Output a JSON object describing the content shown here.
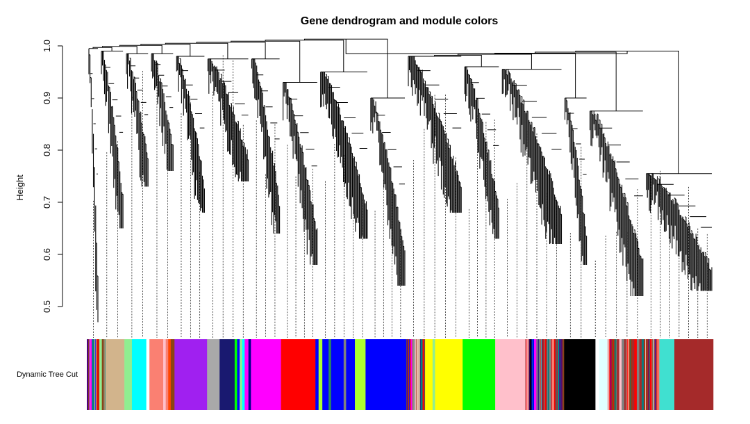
{
  "chart_data": {
    "type": "dendrogram",
    "title": "Gene dendrogram and module colors",
    "xlabel": "",
    "ylabel": "Height",
    "ylim": [
      0.44,
      1.0
    ],
    "yticks": [
      {
        "value": 0.5,
        "label": "0.5"
      },
      {
        "value": 0.6,
        "label": "0.6"
      },
      {
        "value": 0.7,
        "label": "0.7"
      },
      {
        "value": 0.8,
        "label": "0.8"
      },
      {
        "value": 0.9,
        "label": "0.9"
      },
      {
        "value": 1.0,
        "label": "1.0"
      }
    ],
    "color_row_label": "Dynamic Tree Cut",
    "root_height": 0.985,
    "clusters": [
      {
        "start": 0.0,
        "end": 0.02,
        "merge": 0.995,
        "low": 0.47,
        "color": "#6a0dad"
      },
      {
        "start": 0.02,
        "end": 0.06,
        "merge": 0.99,
        "low": 0.65,
        "color": "#d2b48c"
      },
      {
        "start": 0.06,
        "end": 0.1,
        "merge": 0.985,
        "low": 0.73,
        "color": "#00ffff"
      },
      {
        "start": 0.1,
        "end": 0.14,
        "merge": 0.985,
        "low": 0.76,
        "color": "#fa8072"
      },
      {
        "start": 0.14,
        "end": 0.19,
        "merge": 0.98,
        "low": 0.68,
        "color": "#a020f0"
      },
      {
        "start": 0.19,
        "end": 0.26,
        "merge": 0.975,
        "low": 0.74,
        "color": "#191970"
      },
      {
        "start": 0.26,
        "end": 0.31,
        "merge": 0.975,
        "low": 0.64,
        "color": "#ff00ff"
      },
      {
        "start": 0.31,
        "end": 0.37,
        "merge": 0.93,
        "low": 0.58,
        "color": "#ff0000"
      },
      {
        "start": 0.37,
        "end": 0.45,
        "merge": 0.95,
        "low": 0.63,
        "color": "#0000ff"
      },
      {
        "start": 0.45,
        "end": 0.51,
        "merge": 0.9,
        "low": 0.54,
        "color": "#0000ff"
      },
      {
        "start": 0.51,
        "end": 0.6,
        "merge": 0.98,
        "low": 0.68,
        "color": "#ffff00"
      },
      {
        "start": 0.6,
        "end": 0.66,
        "merge": 0.96,
        "low": 0.63,
        "color": "#00ff00"
      },
      {
        "start": 0.66,
        "end": 0.76,
        "merge": 0.955,
        "low": 0.62,
        "color": "#ffc0cb"
      },
      {
        "start": 0.76,
        "end": 0.8,
        "merge": 0.9,
        "low": 0.58,
        "color": "#000000"
      },
      {
        "start": 0.8,
        "end": 0.89,
        "merge": 0.875,
        "low": 0.52,
        "color": "#40e0d0"
      },
      {
        "start": 0.89,
        "end": 1.0,
        "merge": 0.755,
        "low": 0.53,
        "color": "#a52a2a"
      }
    ],
    "module_colors": [
      {
        "start": 0.0,
        "end": 0.004,
        "color": "#4b0082"
      },
      {
        "start": 0.004,
        "end": 0.008,
        "color": "#ff00ff"
      },
      {
        "start": 0.008,
        "end": 0.012,
        "color": "#008080"
      },
      {
        "start": 0.012,
        "end": 0.016,
        "color": "#d2b48c"
      },
      {
        "start": 0.016,
        "end": 0.02,
        "color": "#ff0000"
      },
      {
        "start": 0.02,
        "end": 0.024,
        "color": "#90ee90"
      },
      {
        "start": 0.024,
        "end": 0.028,
        "color": "#8b4513"
      },
      {
        "start": 0.028,
        "end": 0.06,
        "color": "#d2b48c"
      },
      {
        "start": 0.06,
        "end": 0.072,
        "color": "#90ee90"
      },
      {
        "start": 0.072,
        "end": 0.095,
        "color": "#00ffff"
      },
      {
        "start": 0.095,
        "end": 0.1,
        "color": "#ffffff"
      },
      {
        "start": 0.1,
        "end": 0.122,
        "color": "#fa8072"
      },
      {
        "start": 0.122,
        "end": 0.126,
        "color": "#ffc0cb"
      },
      {
        "start": 0.126,
        "end": 0.13,
        "color": "#fa8072"
      },
      {
        "start": 0.13,
        "end": 0.134,
        "color": "#ff4500"
      },
      {
        "start": 0.134,
        "end": 0.14,
        "color": "#8b4513"
      },
      {
        "start": 0.14,
        "end": 0.192,
        "color": "#a020f0"
      },
      {
        "start": 0.192,
        "end": 0.212,
        "color": "#a9a9a9"
      },
      {
        "start": 0.212,
        "end": 0.236,
        "color": "#191970"
      },
      {
        "start": 0.236,
        "end": 0.24,
        "color": "#00ff00"
      },
      {
        "start": 0.24,
        "end": 0.244,
        "color": "#0000ff"
      },
      {
        "start": 0.244,
        "end": 0.248,
        "color": "#90ee90"
      },
      {
        "start": 0.248,
        "end": 0.252,
        "color": "#00ffff"
      },
      {
        "start": 0.252,
        "end": 0.258,
        "color": "#ff00ff"
      },
      {
        "start": 0.258,
        "end": 0.262,
        "color": "#00008b"
      },
      {
        "start": 0.262,
        "end": 0.31,
        "color": "#ff00ff"
      },
      {
        "start": 0.31,
        "end": 0.365,
        "color": "#ff0000"
      },
      {
        "start": 0.365,
        "end": 0.37,
        "color": "#0000ff"
      },
      {
        "start": 0.37,
        "end": 0.376,
        "color": "#adff2f"
      },
      {
        "start": 0.376,
        "end": 0.386,
        "color": "#0000ff"
      },
      {
        "start": 0.386,
        "end": 0.39,
        "color": "#2e8b57"
      },
      {
        "start": 0.39,
        "end": 0.41,
        "color": "#0000ff"
      },
      {
        "start": 0.41,
        "end": 0.414,
        "color": "#808080"
      },
      {
        "start": 0.414,
        "end": 0.428,
        "color": "#0000ff"
      },
      {
        "start": 0.428,
        "end": 0.445,
        "color": "#adff2f"
      },
      {
        "start": 0.445,
        "end": 0.512,
        "color": "#0000ff"
      },
      {
        "start": 0.512,
        "end": 0.516,
        "color": "#8b4513"
      },
      {
        "start": 0.516,
        "end": 0.52,
        "color": "#ff00ff"
      },
      {
        "start": 0.52,
        "end": 0.524,
        "color": "#a9a9a9"
      },
      {
        "start": 0.524,
        "end": 0.528,
        "color": "#ffc0cb"
      },
      {
        "start": 0.528,
        "end": 0.532,
        "color": "#d2b48c"
      },
      {
        "start": 0.532,
        "end": 0.536,
        "color": "#008080"
      },
      {
        "start": 0.536,
        "end": 0.54,
        "color": "#ff0000"
      },
      {
        "start": 0.54,
        "end": 0.552,
        "color": "#ffff00"
      },
      {
        "start": 0.552,
        "end": 0.556,
        "color": "#90ee90"
      },
      {
        "start": 0.556,
        "end": 0.6,
        "color": "#ffff00"
      },
      {
        "start": 0.6,
        "end": 0.652,
        "color": "#00ff00"
      },
      {
        "start": 0.652,
        "end": 0.706,
        "color": "#ffc0cb"
      },
      {
        "start": 0.706,
        "end": 0.71,
        "color": "#000000"
      },
      {
        "start": 0.71,
        "end": 0.714,
        "color": "#0000ff"
      },
      {
        "start": 0.714,
        "end": 0.718,
        "color": "#ff00ff"
      },
      {
        "start": 0.718,
        "end": 0.722,
        "color": "#191970"
      },
      {
        "start": 0.722,
        "end": 0.726,
        "color": "#40e0d0"
      },
      {
        "start": 0.726,
        "end": 0.73,
        "color": "#a52a2a"
      },
      {
        "start": 0.73,
        "end": 0.734,
        "color": "#ff0000"
      },
      {
        "start": 0.734,
        "end": 0.738,
        "color": "#008080"
      },
      {
        "start": 0.738,
        "end": 0.742,
        "color": "#808080"
      },
      {
        "start": 0.742,
        "end": 0.746,
        "color": "#fa8072"
      },
      {
        "start": 0.746,
        "end": 0.75,
        "color": "#a52a2a"
      },
      {
        "start": 0.75,
        "end": 0.754,
        "color": "#008b8b"
      },
      {
        "start": 0.754,
        "end": 0.758,
        "color": "#4b0082"
      },
      {
        "start": 0.758,
        "end": 0.762,
        "color": "#8b4513"
      },
      {
        "start": 0.762,
        "end": 0.812,
        "color": "#000000"
      },
      {
        "start": 0.812,
        "end": 0.818,
        "color": "#ffffff"
      },
      {
        "start": 0.818,
        "end": 0.834,
        "color": "#e0ffff"
      },
      {
        "start": 0.834,
        "end": 0.838,
        "color": "#ff0000"
      },
      {
        "start": 0.838,
        "end": 0.842,
        "color": "#8b4513"
      },
      {
        "start": 0.842,
        "end": 0.846,
        "color": "#008080"
      },
      {
        "start": 0.846,
        "end": 0.85,
        "color": "#a52a2a"
      },
      {
        "start": 0.85,
        "end": 0.854,
        "color": "#ffc0cb"
      },
      {
        "start": 0.854,
        "end": 0.858,
        "color": "#808080"
      },
      {
        "start": 0.858,
        "end": 0.862,
        "color": "#a52a2a"
      },
      {
        "start": 0.862,
        "end": 0.866,
        "color": "#fa8072"
      },
      {
        "start": 0.866,
        "end": 0.87,
        "color": "#8b4513"
      },
      {
        "start": 0.87,
        "end": 0.874,
        "color": "#a52a2a"
      },
      {
        "start": 0.874,
        "end": 0.878,
        "color": "#ff0000"
      },
      {
        "start": 0.878,
        "end": 0.882,
        "color": "#808080"
      },
      {
        "start": 0.882,
        "end": 0.886,
        "color": "#a52a2a"
      },
      {
        "start": 0.886,
        "end": 0.89,
        "color": "#008080"
      },
      {
        "start": 0.89,
        "end": 0.894,
        "color": "#8b4513"
      },
      {
        "start": 0.894,
        "end": 0.898,
        "color": "#a52a2a"
      },
      {
        "start": 0.898,
        "end": 0.902,
        "color": "#ff0000"
      },
      {
        "start": 0.902,
        "end": 0.906,
        "color": "#a9a9a9"
      },
      {
        "start": 0.906,
        "end": 0.91,
        "color": "#a52a2a"
      },
      {
        "start": 0.91,
        "end": 0.914,
        "color": "#fa8072"
      },
      {
        "start": 0.914,
        "end": 0.938,
        "color": "#40e0d0"
      },
      {
        "start": 0.938,
        "end": 1.0,
        "color": "#a52a2a"
      }
    ]
  }
}
